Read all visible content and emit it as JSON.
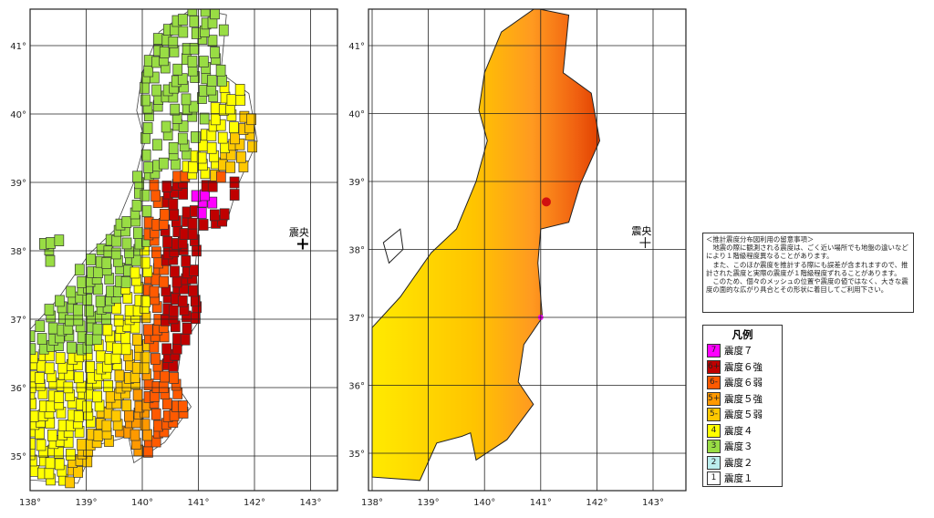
{
  "maps": {
    "lon_ticks": [
      "138°",
      "139°",
      "140°",
      "141°",
      "142°",
      "143°"
    ],
    "lat_ticks": [
      "41°",
      "40°",
      "39°",
      "38°",
      "37°",
      "36°",
      "35°"
    ],
    "epicenter_label": "震央",
    "epicenter": {
      "lon": 142.86,
      "lat": 38.1
    }
  },
  "notice": {
    "title": "＜推計震度分布図利用の留意事項＞",
    "paragraphs": [
      "　地震の際に観測される震度は、ごく近い場所でも地盤の違いなどにより１階級程度異なることがあります。",
      "　また、このほか震度を推計する際にも誤差が含まれますので、推計された震度と実際の震度が１階級程度ずれることがあります。",
      "　このため、個々のメッシュの位置や震度の値ではなく、大きな震度の面的な広がり具合とその形状に着目してご利用下さい。"
    ]
  },
  "legend": {
    "title": "凡例",
    "items": [
      {
        "code": "7",
        "label": "震度７",
        "color": "#ff00ff"
      },
      {
        "code": "6+",
        "label": "震度６強",
        "color": "#c00000"
      },
      {
        "code": "6-",
        "label": "震度６弱",
        "color": "#ff5a00"
      },
      {
        "code": "5+",
        "label": "震度５強",
        "color": "#ff9900"
      },
      {
        "code": "5-",
        "label": "震度５弱",
        "color": "#ffc800"
      },
      {
        "code": "4",
        "label": "震度４",
        "color": "#ffff00"
      },
      {
        "code": "3",
        "label": "震度３",
        "color": "#99dd44"
      },
      {
        "code": "2",
        "label": "震度２",
        "color": "#bbeeee"
      },
      {
        "code": "1",
        "label": "震度１",
        "color": "#ffffff"
      }
    ]
  }
}
